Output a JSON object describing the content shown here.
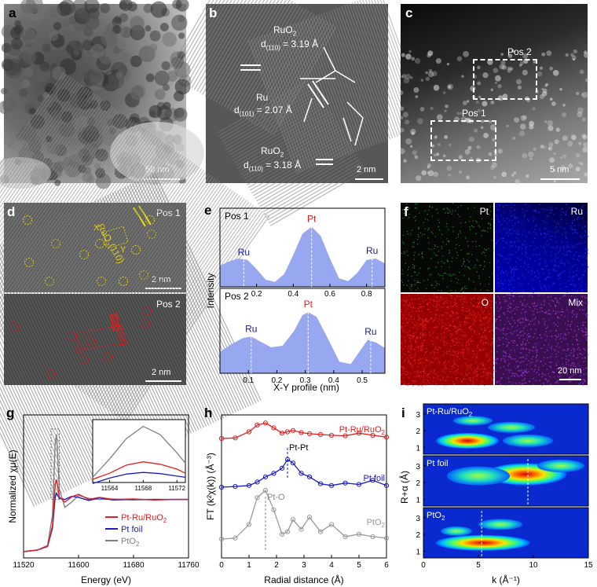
{
  "panels": {
    "a": {
      "label": "a",
      "scalebar": "50 nm"
    },
    "b": {
      "label": "b",
      "scalebar": "2 nm",
      "ruo2_top": {
        "name": "RuO",
        "sub": "2",
        "d": "d",
        "hkl": "(110)",
        "val": " = 3.19 Å"
      },
      "ru": {
        "name": "Ru",
        "d": "d",
        "hkl": "(101)",
        "val": " = 2.07 Å"
      },
      "ruo2_bottom": {
        "name": "RuO",
        "sub": "2",
        "d": "d",
        "hkl": "(110)",
        "val": " = 3.18 Å"
      }
    },
    "c": {
      "label": "c",
      "scalebar": "5 nm",
      "pos1": "Pos 1",
      "pos2": "Pos 2"
    },
    "d": {
      "label": "d",
      "top_title": "Pos 1",
      "bottom_title": "Pos 2",
      "top_scalebar": "2 nm",
      "bottom_scalebar": "2 nm",
      "ruo2": "RuO",
      "ruo2_sub": "2",
      "ruo2_hkl": "(110)",
      "ru_hkl": "Ru(101)",
      "x": "X",
      "y": "Y"
    },
    "e": {
      "label": "e",
      "ylabel": "Intensity",
      "xlabel": "X-Y profile (nm)",
      "top_title": "Pos 1",
      "bottom_title": "Pos 2",
      "top_peaks": [
        "Ru",
        "Pt",
        "Ru"
      ],
      "bottom_peaks": [
        "Ru",
        "Pt",
        "Ru"
      ],
      "top_ticks": [
        "0.2",
        "0.4",
        "0.6",
        "0.8"
      ],
      "bottom_ticks": [
        "0.1",
        "0.2",
        "0.3",
        "0.4",
        "0.5"
      ]
    },
    "f": {
      "label": "f",
      "maps": [
        "Pt",
        "Ru",
        "O",
        "Mix"
      ],
      "scalebar": "20 nm"
    },
    "g": {
      "label": "g",
      "ylabel": "Normalized χμ(E)",
      "xlabel": "Energy (eV)",
      "ticks": [
        "11520",
        "11600",
        "11680",
        "11760"
      ],
      "inset_ticks": [
        "11564",
        "11568",
        "11572"
      ],
      "legend": [
        {
          "name": "Pt-Ru/RuO",
          "sub": "2",
          "color": "#e02020"
        },
        {
          "name": "Pt foil",
          "sub": "",
          "color": "#1a1acc"
        },
        {
          "name": "PtO",
          "sub": "2",
          "color": "#808080"
        }
      ]
    },
    "h": {
      "label": "h",
      "ylabel": "FT (k²χ(k)) (Å⁻³)",
      "xlabel": "Radial distance (Å)",
      "ticks": [
        "0",
        "1",
        "2",
        "3",
        "4",
        "5",
        "6"
      ],
      "series": [
        {
          "name": "Pt-Ru/RuO",
          "sub": "2",
          "color": "#e02020"
        },
        {
          "name": "Pt foil",
          "sub": "",
          "color": "#1a1acc"
        },
        {
          "name": "PtO",
          "sub": "2",
          "color": "#9a9a9a"
        }
      ],
      "ann_ptpt": "Pt-Pt",
      "ann_pto": "Pt-O"
    },
    "i": {
      "label": "i",
      "ylabel": "R+α (Å)",
      "xlabel": "k (Å⁻¹)",
      "ticks": [
        "0",
        "5",
        "10",
        "15"
      ],
      "yticks": [
        "1",
        "2",
        "3"
      ],
      "maps": [
        {
          "name": "Pt-Ru/RuO",
          "sub": "2"
        },
        {
          "name": "Pt foil",
          "sub": ""
        },
        {
          "name": "PtO",
          "sub": "2"
        }
      ]
    }
  },
  "chart_data": [
    {
      "type": "line",
      "panel": "e-top",
      "title": "Pos 1",
      "x": [
        0.0,
        0.05,
        0.1,
        0.15,
        0.2,
        0.25,
        0.3,
        0.35,
        0.4,
        0.45,
        0.5,
        0.55,
        0.6,
        0.65,
        0.7,
        0.75,
        0.8,
        0.85,
        0.9
      ],
      "values": [
        0.3,
        0.36,
        0.4,
        0.38,
        0.25,
        0.1,
        0.07,
        0.18,
        0.45,
        0.75,
        0.85,
        0.72,
        0.4,
        0.12,
        0.08,
        0.2,
        0.38,
        0.4,
        0.33
      ],
      "xlim": [
        0.0,
        0.9
      ],
      "peak_labels": [
        {
          "x": 0.13,
          "label": "Ru"
        },
        {
          "x": 0.5,
          "label": "Pt"
        },
        {
          "x": 0.83,
          "label": "Ru"
        }
      ]
    },
    {
      "type": "line",
      "panel": "e-bottom",
      "title": "Pos 2",
      "x": [
        0.0,
        0.04,
        0.08,
        0.11,
        0.14,
        0.18,
        0.22,
        0.26,
        0.29,
        0.31,
        0.34,
        0.38,
        0.42,
        0.46,
        0.49,
        0.52,
        0.55,
        0.58
      ],
      "values": [
        0.28,
        0.38,
        0.46,
        0.48,
        0.42,
        0.34,
        0.36,
        0.55,
        0.76,
        0.8,
        0.74,
        0.45,
        0.15,
        0.12,
        0.28,
        0.44,
        0.4,
        0.33
      ],
      "xlim": [
        0.0,
        0.58
      ],
      "peak_labels": [
        {
          "x": 0.11,
          "label": "Ru"
        },
        {
          "x": 0.31,
          "label": "Pt"
        },
        {
          "x": 0.53,
          "label": "Ru"
        }
      ]
    },
    {
      "type": "line",
      "panel": "g",
      "xlim": [
        11520,
        11760
      ],
      "xlabel": "Energy (eV)",
      "ylabel": "Normalized χμ(E)",
      "x": [
        11520,
        11540,
        11555,
        11562,
        11566,
        11568,
        11572,
        11580,
        11590,
        11600,
        11615,
        11630,
        11650,
        11680,
        11710,
        11740,
        11760
      ],
      "series": [
        {
          "name": "Pt-Ru/RuO2",
          "values": [
            0.0,
            0.03,
            0.1,
            0.5,
            1.3,
            1.38,
            1.05,
            0.95,
            1.05,
            1.1,
            1.0,
            1.04,
            1.0,
            1.01,
            0.99,
            1.0,
            1.0
          ]
        },
        {
          "name": "Pt foil",
          "values": [
            0.0,
            0.03,
            0.1,
            0.45,
            1.05,
            1.12,
            1.02,
            1.0,
            1.06,
            1.04,
            0.98,
            1.03,
            0.99,
            1.0,
            1.0,
            1.0,
            1.0
          ]
        },
        {
          "name": "PtO2",
          "values": [
            0.0,
            0.03,
            0.12,
            0.7,
            2.1,
            2.25,
            1.2,
            0.85,
            0.95,
            1.08,
            1.02,
            1.0,
            1.01,
            0.99,
            1.0,
            1.0,
            1.0
          ]
        }
      ]
    },
    {
      "type": "line",
      "panel": "h",
      "xlim": [
        0,
        6
      ],
      "xlabel": "Radial distance (Å)",
      "x": [
        0.0,
        0.5,
        1.0,
        1.3,
        1.6,
        1.9,
        2.2,
        2.4,
        2.6,
        2.9,
        3.2,
        3.6,
        4.0,
        4.5,
        5.0,
        5.5,
        6.0
      ],
      "series": [
        {
          "name": "Pt-Ru/RuO2",
          "values": [
            0.0,
            0.02,
            0.25,
            0.5,
            0.58,
            0.4,
            0.2,
            0.25,
            0.3,
            0.22,
            0.18,
            0.15,
            0.12,
            0.1,
            0.2,
            0.12,
            0.05
          ]
        },
        {
          "name": "Pt foil",
          "values": [
            0.0,
            0.02,
            0.05,
            0.15,
            0.3,
            0.4,
            0.55,
            0.8,
            0.7,
            0.4,
            0.3,
            0.1,
            0.05,
            0.12,
            0.08,
            0.2,
            0.05
          ]
        },
        {
          "name": "PtO2",
          "values": [
            0.0,
            0.02,
            0.3,
            0.85,
            1.0,
            0.6,
            0.1,
            0.15,
            0.4,
            0.2,
            0.45,
            0.15,
            0.3,
            0.05,
            0.1,
            0.05,
            0.02
          ]
        }
      ]
    }
  ]
}
